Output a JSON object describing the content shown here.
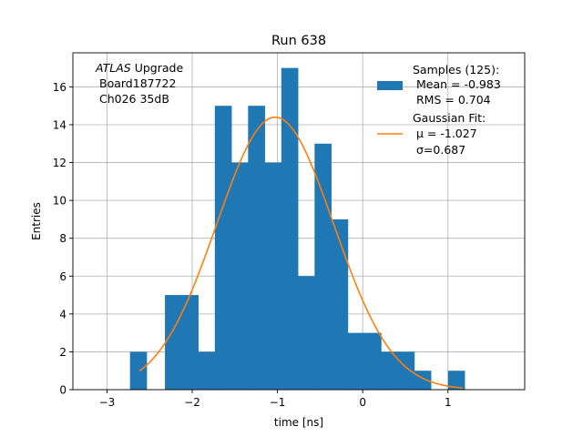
{
  "chart_data": {
    "type": "bar",
    "title": "Run 638",
    "xlabel": "time [ns]",
    "ylabel": "Entries",
    "xlim": [
      -3.4,
      1.9
    ],
    "ylim": [
      0,
      17.8
    ],
    "grid": true,
    "xticks": [
      -3,
      -2,
      -1,
      0,
      1
    ],
    "xtick_labels": [
      "−3",
      "−2",
      "−1",
      "0",
      "1"
    ],
    "yticks": [
      0,
      2,
      4,
      6,
      8,
      10,
      12,
      14,
      16
    ],
    "ytick_labels": [
      "0",
      "2",
      "4",
      "6",
      "8",
      "10",
      "12",
      "14",
      "16"
    ],
    "annotation": {
      "italic": "ATLAS",
      "line1_rest": " Upgrade",
      "line2": "Board187722",
      "line3": "Ch026 35dB"
    },
    "legend": {
      "placement": "top-right",
      "hist_lines": [
        "Samples (125):",
        "Mean = -0.983",
        "RMS = 0.704"
      ],
      "fit_lines": [
        "Gaussian Fit:",
        "μ = -1.027",
        "σ=0.687"
      ]
    },
    "histogram": {
      "color": "#1f77b4",
      "bin_width": 0.195,
      "bins": [
        {
          "x0": -2.73,
          "count": 2
        },
        {
          "x0": -2.32,
          "count": 5
        },
        {
          "x0": -2.125,
          "count": 5
        },
        {
          "x0": -1.93,
          "count": 2
        },
        {
          "x0": -1.735,
          "count": 15
        },
        {
          "x0": -1.54,
          "count": 12
        },
        {
          "x0": -1.345,
          "count": 15
        },
        {
          "x0": -1.15,
          "count": 12
        },
        {
          "x0": -0.955,
          "count": 17
        },
        {
          "x0": -0.76,
          "count": 6
        },
        {
          "x0": -0.565,
          "count": 13
        },
        {
          "x0": -0.37,
          "count": 9
        },
        {
          "x0": -0.175,
          "count": 3
        },
        {
          "x0": 0.02,
          "count": 3
        },
        {
          "x0": 0.215,
          "count": 2
        },
        {
          "x0": 0.41,
          "count": 2
        },
        {
          "x0": 0.605,
          "count": 1
        },
        {
          "x0": 1.0,
          "count": 1
        }
      ]
    },
    "fit": {
      "color": "#ff7f0e",
      "amplitude": 14.4,
      "mu": -1.027,
      "sigma": 0.687,
      "x_range": [
        -2.62,
        1.17
      ]
    }
  }
}
